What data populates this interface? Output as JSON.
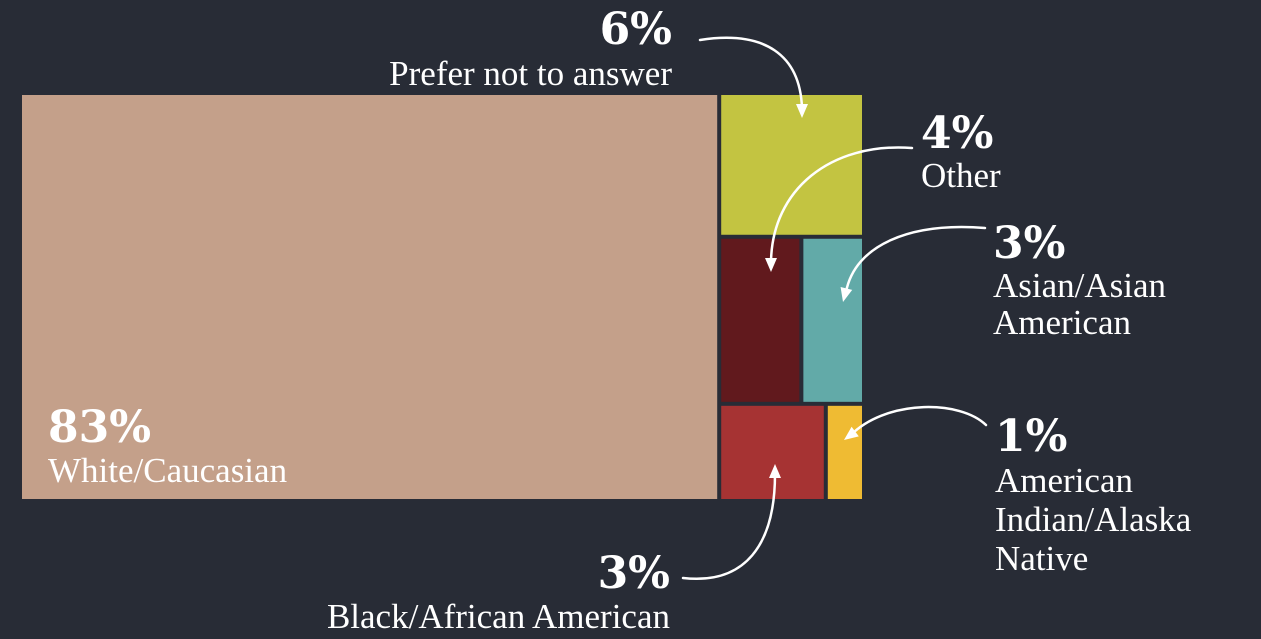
{
  "chart_data": {
    "type": "treemap",
    "title": "",
    "unit": "%",
    "segments": [
      {
        "id": "white",
        "percent_label": "83%",
        "label_lines": [
          "White/Caucasian"
        ],
        "value": 83,
        "color": "#c4a08a"
      },
      {
        "id": "prefer",
        "percent_label": "6%",
        "label_lines": [
          "Prefer not to answer"
        ],
        "value": 6,
        "color": "#c3c441"
      },
      {
        "id": "other",
        "percent_label": "4%",
        "label_lines": [
          "Other"
        ],
        "value": 4,
        "color": "#61191d"
      },
      {
        "id": "asian",
        "percent_label": "3%",
        "label_lines": [
          "Asian/Asian",
          "American"
        ],
        "value": 3,
        "color": "#62aaa8"
      },
      {
        "id": "black",
        "percent_label": "3%",
        "label_lines": [
          "Black/African American"
        ],
        "value": 3,
        "color": "#a63333"
      },
      {
        "id": "native",
        "percent_label": "1%",
        "label_lines": [
          "American",
          "Indian/Alaska",
          "Native"
        ],
        "value": 1,
        "color": "#efbb33"
      }
    ]
  }
}
